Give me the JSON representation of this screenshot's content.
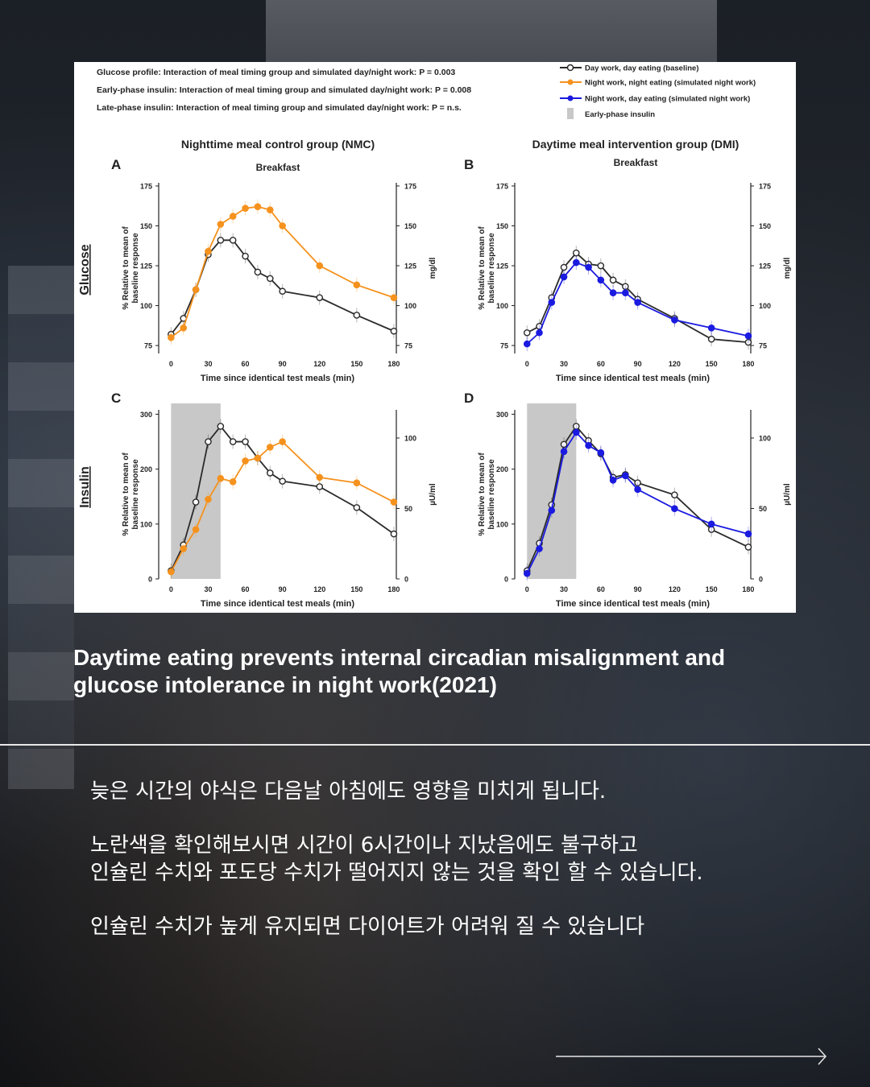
{
  "caption": {
    "line1": "Daytime eating prevents internal circadian misalignment and",
    "line2": "glucose intolerance in night work(2021)"
  },
  "body": {
    "line1": "늦은 시간의 야식은 다음날 아침에도 영향을 미치게 됩니다.",
    "line2": "노란색을 확인해보시면 시간이 6시간이나 지났음에도 불구하고",
    "line3": "인슐린 수치와 포도당 수치가 떨어지지 않는 것을 확인 할 수 있습니다.",
    "line4": "인슐린 수치가 높게 유지되면 다이어트가 어려워 질 수 있습니다"
  },
  "figure": {
    "header_lines": [
      "Glucose profile: Interaction of meal timing group and simulated day/night work: P = 0.003",
      "Early-phase insulin: Interaction of meal timing group and simulated day/night work: P = 0.008",
      "Late-phase insulin: Interaction of meal timing group and simulated day/night work: P = n.s."
    ],
    "legend": {
      "baseline": "Day work, day eating (baseline)",
      "night_eating": "Night work, night eating (simulated night work)",
      "day_eating": "Night work, day eating (simulated night work)",
      "shade": "Early-phase insulin"
    },
    "group_nmc": "Nighttime meal control group (NMC)",
    "group_dmi": "Daytime meal intervention group (DMI)",
    "meal": "Breakfast",
    "row_glucose": "Glucose",
    "row_insulin": "Insulin",
    "colors": {
      "baseline": "#2a2a2a",
      "night_eating": "#f5921e",
      "day_eating": "#1a1ae0",
      "shade": "#c8c8c8"
    }
  },
  "chart_data": [
    {
      "panel": "A",
      "type": "line",
      "x": [
        0,
        10,
        20,
        30,
        40,
        50,
        60,
        70,
        80,
        90,
        120,
        150,
        180
      ],
      "xticks": [
        0,
        30,
        60,
        90,
        120,
        150,
        180
      ],
      "xlim": [
        -10,
        182
      ],
      "ylim": [
        70,
        177
      ],
      "yticks": [
        75,
        100,
        125,
        150,
        175
      ],
      "ylim_right": [
        70,
        177
      ],
      "yticks_right": [
        75,
        100,
        125,
        150,
        175
      ],
      "xlabel": "Time since identical test meals (min)",
      "ylabel": "% Relative to mean of baseline response",
      "ylabel_right": "mg/dl",
      "series": [
        {
          "key": "baseline",
          "values": [
            82,
            92,
            110,
            132,
            141,
            141,
            131,
            121,
            117,
            109,
            105,
            94,
            84
          ]
        },
        {
          "key": "night_eating",
          "values": [
            80,
            86,
            110,
            134,
            151,
            156,
            161,
            162,
            160,
            150,
            125,
            113,
            105
          ]
        }
      ]
    },
    {
      "panel": "B",
      "type": "line",
      "x": [
        0,
        10,
        20,
        30,
        40,
        50,
        60,
        70,
        80,
        90,
        120,
        150,
        180
      ],
      "xticks": [
        0,
        30,
        60,
        90,
        120,
        150,
        180
      ],
      "xlim": [
        -10,
        182
      ],
      "ylim": [
        70,
        177
      ],
      "yticks": [
        75,
        100,
        125,
        150,
        175
      ],
      "ylim_right": [
        70,
        177
      ],
      "yticks_right": [
        75,
        100,
        125,
        150,
        175
      ],
      "xlabel": "Time since identical test meals (min)",
      "ylabel": "% Relative to mean of baseline response",
      "ylabel_right": "mg/dl",
      "series": [
        {
          "key": "baseline",
          "values": [
            83,
            87,
            105,
            124,
            133,
            126,
            125,
            116,
            112,
            104,
            92,
            79,
            77
          ]
        },
        {
          "key": "day_eating",
          "values": [
            76,
            83,
            102,
            118,
            127,
            124,
            116,
            108,
            108,
            102,
            91,
            86,
            81
          ]
        }
      ]
    },
    {
      "panel": "C",
      "type": "line",
      "x": [
        0,
        10,
        20,
        30,
        40,
        50,
        60,
        70,
        80,
        90,
        120,
        150,
        180
      ],
      "xticks": [
        0,
        30,
        60,
        90,
        120,
        150,
        180
      ],
      "xlim": [
        -10,
        182
      ],
      "ylim": [
        0,
        308
      ],
      "yticks": [
        0,
        100,
        200,
        300
      ],
      "ylim_right": [
        0,
        120
      ],
      "yticks_right": [
        0,
        50,
        100
      ],
      "shade_x": [
        0,
        40
      ],
      "xlabel": "Time since identical test meals (min)",
      "ylabel": "% Relative to mean of baseline response",
      "ylabel_right": "µU/ml",
      "series": [
        {
          "key": "baseline",
          "values": [
            15,
            62,
            140,
            250,
            278,
            250,
            250,
            220,
            193,
            178,
            168,
            130,
            82
          ]
        },
        {
          "key": "night_eating",
          "values": [
            13,
            55,
            90,
            145,
            183,
            177,
            215,
            220,
            240,
            250,
            185,
            175,
            140
          ]
        }
      ]
    },
    {
      "panel": "D",
      "type": "line",
      "x": [
        0,
        10,
        20,
        30,
        40,
        50,
        60,
        70,
        80,
        90,
        120,
        150,
        180
      ],
      "xticks": [
        0,
        30,
        60,
        90,
        120,
        150,
        180
      ],
      "xlim": [
        -10,
        182
      ],
      "ylim": [
        0,
        308
      ],
      "yticks": [
        0,
        100,
        200,
        300
      ],
      "ylim_right": [
        0,
        120
      ],
      "yticks_right": [
        0,
        50,
        100
      ],
      "shade_x": [
        0,
        40
      ],
      "xlabel": "Time since identical test meals (min)",
      "ylabel": "% Relative to mean of baseline response",
      "ylabel_right": "µU/ml",
      "series": [
        {
          "key": "baseline",
          "values": [
            15,
            65,
            135,
            245,
            278,
            252,
            228,
            185,
            190,
            175,
            153,
            90,
            58
          ]
        },
        {
          "key": "day_eating",
          "values": [
            10,
            55,
            125,
            232,
            267,
            243,
            230,
            180,
            188,
            163,
            128,
            100,
            82
          ]
        }
      ]
    }
  ]
}
